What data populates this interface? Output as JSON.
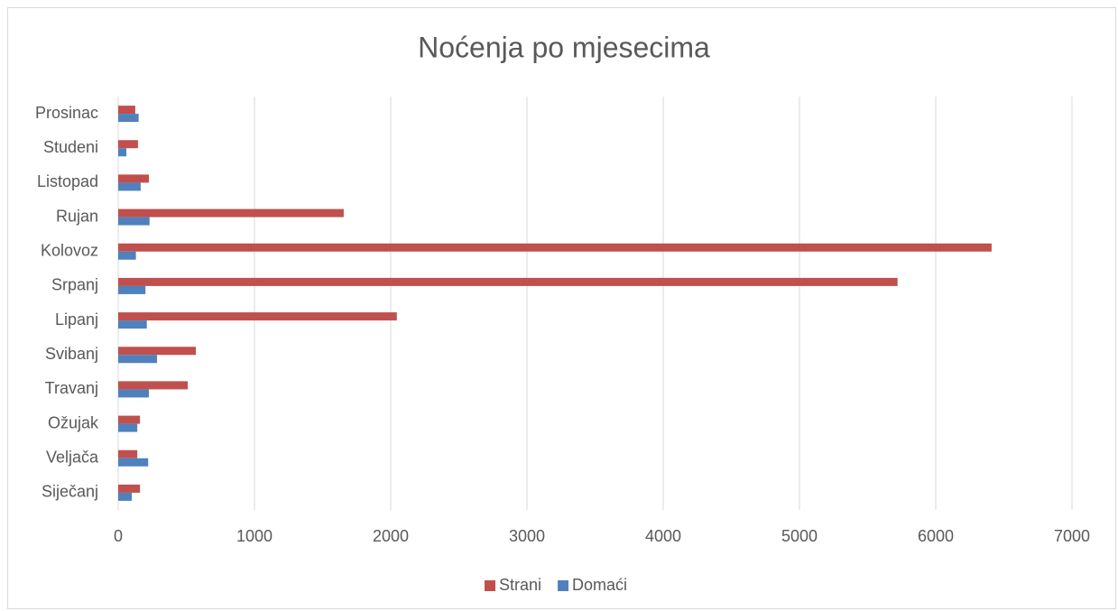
{
  "chart_data": {
    "type": "barh",
    "title": "Noćenja po mjesecima",
    "categories": [
      "Siječanj",
      "Veljača",
      "Ožujak",
      "Travanj",
      "Svibanj",
      "Lipanj",
      "Srpanj",
      "Kolovoz",
      "Rujan",
      "Listopad",
      "Studeni",
      "Prosinac"
    ],
    "series": [
      {
        "name": "Strani",
        "color": "#c0504d",
        "values": [
          160,
          140,
          160,
          510,
          570,
          2045,
          5720,
          6410,
          1655,
          225,
          145,
          125
        ]
      },
      {
        "name": "Domaći",
        "color": "#4f81bd",
        "values": [
          100,
          220,
          140,
          225,
          285,
          210,
          200,
          130,
          230,
          165,
          60,
          150
        ]
      }
    ],
    "xlim": [
      0,
      7000
    ],
    "xticks": [
      0,
      1000,
      2000,
      3000,
      4000,
      5000,
      6000,
      7000
    ],
    "grid": true,
    "legend": "bottom"
  }
}
